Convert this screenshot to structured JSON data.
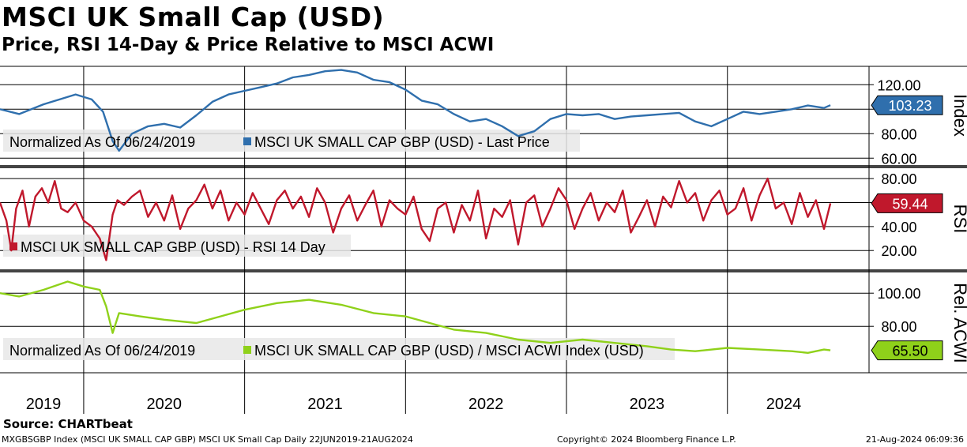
{
  "title": "MSCI UK Small Cap (USD)",
  "subtitle": "Price, RSI 14-Day & Price Relative to MSCI ACWI",
  "colors": {
    "price": "#2f6fad",
    "rsi": "#c0182c",
    "relative": "#8fd11a",
    "grid": "#000000",
    "legend_bg": "#e8e8e8"
  },
  "chart_data": [
    {
      "type": "line",
      "panel": "price",
      "axis_title": "Index",
      "legend_text": "Normalized As Of 06/24/2019",
      "series": [
        {
          "name": "MSCI UK SMALL CAP GBP (USD) - Last Price",
          "last_value_label": "103.23",
          "x": [
            2019.48,
            2019.6,
            2019.75,
            2019.85,
            2019.95,
            2020.05,
            2020.12,
            2020.18,
            2020.22,
            2020.3,
            2020.4,
            2020.5,
            2020.6,
            2020.7,
            2020.8,
            2020.9,
            2021.0,
            2021.1,
            2021.2,
            2021.3,
            2021.4,
            2021.5,
            2021.6,
            2021.7,
            2021.8,
            2021.9,
            2022.0,
            2022.1,
            2022.2,
            2022.3,
            2022.4,
            2022.5,
            2022.6,
            2022.7,
            2022.8,
            2022.9,
            2023.0,
            2023.1,
            2023.2,
            2023.3,
            2023.4,
            2023.5,
            2023.6,
            2023.7,
            2023.8,
            2023.9,
            2024.0,
            2024.1,
            2024.2,
            2024.3,
            2024.4,
            2024.5,
            2024.6,
            2024.64
          ],
          "values": [
            100,
            96,
            104,
            108,
            112,
            108,
            98,
            74,
            66,
            80,
            86,
            88,
            85,
            95,
            106,
            112,
            115,
            118,
            121,
            126,
            128,
            131,
            132,
            130,
            124,
            122,
            116,
            107,
            104,
            96,
            90,
            92,
            86,
            78,
            82,
            92,
            96,
            95,
            96,
            92,
            94,
            95,
            96,
            97,
            90,
            86,
            92,
            98,
            96,
            98,
            100,
            103,
            101,
            103.23
          ]
        }
      ],
      "ylim": [
        55,
        135
      ],
      "yticks": [
        "60.00",
        "80.00",
        "100.00",
        "120.00"
      ],
      "ytick_values": [
        60,
        80,
        100,
        120
      ]
    },
    {
      "type": "line",
      "panel": "rsi",
      "axis_title": "RSI",
      "legend_text": "",
      "series": [
        {
          "name": "MSCI UK SMALL CAP GBP (USD) - RSI 14 Day",
          "last_value_label": "59.44",
          "x": [
            2019.48,
            2019.52,
            2019.55,
            2019.58,
            2019.62,
            2019.66,
            2019.7,
            2019.74,
            2019.78,
            2019.82,
            2019.86,
            2019.9,
            2019.95,
            2020.0,
            2020.05,
            2020.1,
            2020.14,
            2020.18,
            2020.21,
            2020.25,
            2020.3,
            2020.35,
            2020.4,
            2020.45,
            2020.5,
            2020.55,
            2020.6,
            2020.65,
            2020.7,
            2020.75,
            2020.8,
            2020.85,
            2020.9,
            2020.95,
            2021.0,
            2021.05,
            2021.1,
            2021.15,
            2021.2,
            2021.25,
            2021.3,
            2021.35,
            2021.4,
            2021.45,
            2021.5,
            2021.55,
            2021.6,
            2021.65,
            2021.7,
            2021.75,
            2021.8,
            2021.85,
            2021.9,
            2021.95,
            2022.0,
            2022.05,
            2022.1,
            2022.15,
            2022.2,
            2022.25,
            2022.3,
            2022.35,
            2022.4,
            2022.45,
            2022.5,
            2022.55,
            2022.6,
            2022.65,
            2022.7,
            2022.75,
            2022.8,
            2022.85,
            2022.9,
            2022.95,
            2023.0,
            2023.05,
            2023.1,
            2023.15,
            2023.2,
            2023.25,
            2023.3,
            2023.35,
            2023.4,
            2023.45,
            2023.5,
            2023.55,
            2023.6,
            2023.65,
            2023.7,
            2023.75,
            2023.8,
            2023.85,
            2023.9,
            2023.95,
            2024.0,
            2024.05,
            2024.1,
            2024.15,
            2024.2,
            2024.25,
            2024.3,
            2024.35,
            2024.4,
            2024.45,
            2024.5,
            2024.55,
            2024.6,
            2024.64
          ],
          "values": [
            60,
            45,
            20,
            55,
            70,
            40,
            65,
            72,
            60,
            78,
            55,
            52,
            60,
            45,
            40,
            30,
            12,
            50,
            62,
            58,
            65,
            70,
            48,
            60,
            45,
            66,
            38,
            55,
            62,
            75,
            55,
            70,
            45,
            60,
            50,
            68,
            55,
            42,
            62,
            70,
            55,
            65,
            48,
            72,
            60,
            35,
            55,
            66,
            45,
            58,
            70,
            40,
            62,
            55,
            50,
            65,
            38,
            28,
            55,
            60,
            35,
            58,
            45,
            70,
            30,
            55,
            48,
            62,
            25,
            60,
            66,
            40,
            55,
            72,
            62,
            38,
            55,
            68,
            45,
            60,
            52,
            70,
            35,
            48,
            62,
            40,
            65,
            56,
            78,
            60,
            68,
            45,
            62,
            70,
            50,
            55,
            72,
            45,
            66,
            80,
            55,
            60,
            42,
            68,
            48,
            62,
            38,
            59.44
          ]
        }
      ],
      "ylim": [
        5,
        88
      ],
      "yticks": [
        "20.00",
        "40.00",
        "60.00",
        "80.00"
      ],
      "ytick_values": [
        20,
        40,
        60,
        80
      ]
    },
    {
      "type": "line",
      "panel": "relative",
      "axis_title": "Rel. ACWI",
      "legend_text": "Normalized As Of 06/24/2019",
      "series": [
        {
          "name": "MSCI UK SMALL CAP GBP (USD) / MSCI ACWI Index (USD)",
          "last_value_label": "65.50",
          "x": [
            2019.48,
            2019.6,
            2019.75,
            2019.9,
            2020.0,
            2020.1,
            2020.14,
            2020.18,
            2020.22,
            2020.35,
            2020.5,
            2020.7,
            2020.85,
            2021.0,
            2021.2,
            2021.4,
            2021.6,
            2021.8,
            2022.0,
            2022.15,
            2022.3,
            2022.5,
            2022.7,
            2022.9,
            2023.1,
            2023.3,
            2023.5,
            2023.65,
            2023.8,
            2024.0,
            2024.2,
            2024.4,
            2024.5,
            2024.6,
            2024.64
          ],
          "values": [
            100,
            98,
            102,
            107,
            104,
            102,
            92,
            76,
            88,
            86,
            84,
            82,
            86,
            90,
            94,
            96,
            93,
            88,
            86,
            82,
            78,
            76,
            72,
            70,
            72,
            70,
            68,
            66,
            65,
            67,
            66,
            65,
            64,
            66,
            65.5
          ]
        }
      ],
      "ylim": [
        52,
        112
      ],
      "yticks": [
        "80.00",
        "100.00"
      ],
      "ytick_values": [
        80,
        100
      ]
    }
  ],
  "x_axis": {
    "labels": [
      "2019",
      "2020",
      "2021",
      "2022",
      "2023",
      "2024"
    ],
    "label_positions": [
      2019.75,
      2020.5,
      2021.5,
      2022.5,
      2023.5,
      2024.35
    ],
    "year_boundaries": [
      2020.0,
      2021.0,
      2022.0,
      2023.0,
      2024.0
    ],
    "xlim": [
      2019.48,
      2024.88
    ]
  },
  "footer": {
    "source": "Source: CHARTbeat",
    "left": "MXGBSGBP Index (MSCI UK SMALL CAP GBP) MSCI UK Small Cap  Daily 22JUN2019-21AUG2024",
    "mid": "Copyright© 2024 Bloomberg Finance L.P.",
    "right": "21-Aug-2024 06:09:36"
  }
}
